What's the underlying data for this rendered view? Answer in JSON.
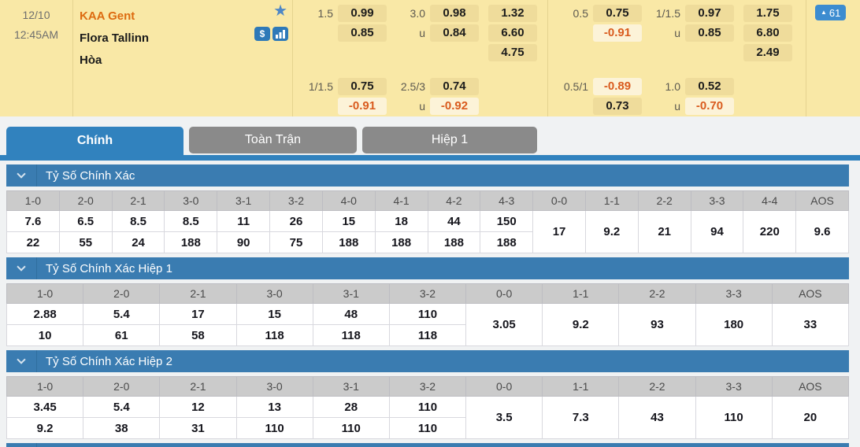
{
  "match": {
    "date": "12/10",
    "time": "12:45AM",
    "home_team": "KAA Gent",
    "away_team": "Flora Tallinn",
    "draw_label": "Hòa",
    "update_badge_count": "61"
  },
  "icons": {
    "favorite_star": "★",
    "triangle_up": "▲",
    "dollar": "$",
    "bar_chart": "bar-chart-icon",
    "chevron_down": "chevron-down-icon"
  },
  "odds": {
    "full_time": {
      "handicap": {
        "line": "1.5",
        "home": "0.99",
        "away": "0.85"
      },
      "over_under": {
        "line": "3.0",
        "under_label": "u",
        "over": "0.98",
        "under": "0.84"
      },
      "one_x_two": [
        "1.32",
        "6.60",
        "4.75"
      ],
      "handicap2": {
        "line": "1/1.5",
        "home": "0.75",
        "away": "-0.91"
      },
      "over_under2": {
        "line": "2.5/3",
        "under_label": "u",
        "over": "0.74",
        "under": "-0.92"
      }
    },
    "first_half": {
      "handicap": {
        "line": "0.5",
        "home": "0.75",
        "away": "-0.91"
      },
      "over_under": {
        "line": "1/1.5",
        "under_label": "u",
        "over": "0.97",
        "under": "0.85"
      },
      "one_x_two": [
        "1.75",
        "6.80",
        "2.49"
      ],
      "handicap2": {
        "line": "0.5/1",
        "home": "-0.89",
        "away": "0.73"
      },
      "over_under2": {
        "line": "1.0",
        "under_label": "u",
        "over": "0.52",
        "under": "-0.70"
      }
    }
  },
  "tabs": [
    {
      "label": "Chính",
      "active": true
    },
    {
      "label": "Toàn Trận",
      "active": false
    },
    {
      "label": "Hiệp 1",
      "active": false
    }
  ],
  "sections": [
    {
      "title": "Tỷ Số Chính Xác",
      "columns": [
        {
          "score": "1-0",
          "odds": [
            "7.6",
            "22"
          ]
        },
        {
          "score": "2-0",
          "odds": [
            "6.5",
            "55"
          ]
        },
        {
          "score": "2-1",
          "odds": [
            "8.5",
            "24"
          ]
        },
        {
          "score": "3-0",
          "odds": [
            "8.5",
            "188"
          ]
        },
        {
          "score": "3-1",
          "odds": [
            "11",
            "90"
          ]
        },
        {
          "score": "3-2",
          "odds": [
            "26",
            "75"
          ]
        },
        {
          "score": "4-0",
          "odds": [
            "15",
            "188"
          ]
        },
        {
          "score": "4-1",
          "odds": [
            "18",
            "188"
          ]
        },
        {
          "score": "4-2",
          "odds": [
            "44",
            "188"
          ]
        },
        {
          "score": "4-3",
          "odds": [
            "150",
            "188"
          ]
        },
        {
          "score": "0-0",
          "odds": [
            "17"
          ]
        },
        {
          "score": "1-1",
          "odds": [
            "9.2"
          ]
        },
        {
          "score": "2-2",
          "odds": [
            "21"
          ]
        },
        {
          "score": "3-3",
          "odds": [
            "94"
          ]
        },
        {
          "score": "4-4",
          "odds": [
            "220"
          ]
        },
        {
          "score": "AOS",
          "odds": [
            "9.6"
          ]
        }
      ]
    },
    {
      "title": "Tỷ Số Chính Xác Hiệp 1",
      "columns": [
        {
          "score": "1-0",
          "odds": [
            "2.88",
            "10"
          ]
        },
        {
          "score": "2-0",
          "odds": [
            "5.4",
            "61"
          ]
        },
        {
          "score": "2-1",
          "odds": [
            "17",
            "58"
          ]
        },
        {
          "score": "3-0",
          "odds": [
            "15",
            "118"
          ]
        },
        {
          "score": "3-1",
          "odds": [
            "48",
            "118"
          ]
        },
        {
          "score": "3-2",
          "odds": [
            "110",
            "118"
          ]
        },
        {
          "score": "0-0",
          "odds": [
            "3.05"
          ]
        },
        {
          "score": "1-1",
          "odds": [
            "9.2"
          ]
        },
        {
          "score": "2-2",
          "odds": [
            "93"
          ]
        },
        {
          "score": "3-3",
          "odds": [
            "180"
          ]
        },
        {
          "score": "AOS",
          "odds": [
            "33"
          ]
        }
      ]
    },
    {
      "title": "Tỷ Số Chính Xác Hiệp 2",
      "columns": [
        {
          "score": "1-0",
          "odds": [
            "3.45",
            "9.2"
          ]
        },
        {
          "score": "2-0",
          "odds": [
            "5.4",
            "38"
          ]
        },
        {
          "score": "2-1",
          "odds": [
            "12",
            "31"
          ]
        },
        {
          "score": "3-0",
          "odds": [
            "13",
            "110"
          ]
        },
        {
          "score": "3-1",
          "odds": [
            "28",
            "110"
          ]
        },
        {
          "score": "3-2",
          "odds": [
            "110",
            "110"
          ]
        },
        {
          "score": "0-0",
          "odds": [
            "3.5"
          ]
        },
        {
          "score": "1-1",
          "odds": [
            "7.3"
          ]
        },
        {
          "score": "2-2",
          "odds": [
            "43"
          ]
        },
        {
          "score": "3-3",
          "odds": [
            "110"
          ]
        },
        {
          "score": "AOS",
          "odds": [
            "20"
          ]
        }
      ]
    }
  ],
  "colors": {
    "accent_blue": "#3182BE",
    "section_blue": "#3A7CB1",
    "panel_yellow": "#F9E8A6",
    "odds_cell_tan": "#EFDC9B",
    "negative_orange": "#D95B1E",
    "home_team_orange": "#DD6B10"
  }
}
